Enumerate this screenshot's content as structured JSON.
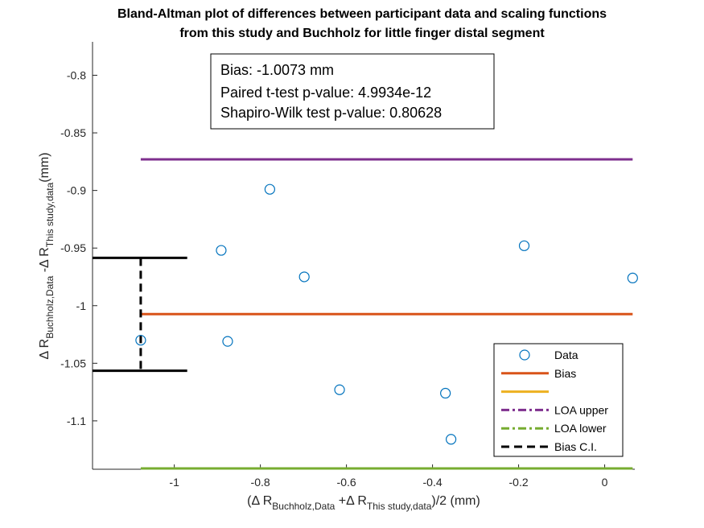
{
  "chart_data": {
    "type": "scatter",
    "title_lines": [
      "Bland-Altman plot of differences between participant data and scaling functions",
      "from this study and Buchholz for little finger distal segment"
    ],
    "xlabel": {
      "prefix": "(Δ R",
      "sub1": "Buchholz,Data",
      "mid": " +Δ R",
      "sub2": "This study,data",
      "suffix": ")/2 (mm)"
    },
    "ylabel": {
      "prefix": "Δ R",
      "sub1": "Buchholz,Data",
      "mid": " -Δ R",
      "sub2": "This study,data",
      "suffix": "(mm)"
    },
    "xlim": [
      -1.19,
      0.07
    ],
    "ylim": [
      -1.142,
      -0.771
    ],
    "xticks": [
      -1,
      -0.8,
      -0.6,
      -0.4,
      -0.2,
      0
    ],
    "xtick_labels": [
      "-1",
      "-0.8",
      "-0.6",
      "-0.4",
      "-0.2",
      "0"
    ],
    "yticks": [
      -1.1,
      -1.05,
      -1,
      -0.95,
      -0.9,
      -0.85,
      -0.8
    ],
    "ytick_labels": [
      "-1.1",
      "-1.05",
      "-1",
      "-0.95",
      "-0.9",
      "-0.85",
      "-0.8"
    ],
    "points": [
      {
        "x": -1.078,
        "y": -1.03
      },
      {
        "x": -0.891,
        "y": -0.952
      },
      {
        "x": -0.876,
        "y": -1.031
      },
      {
        "x": -0.778,
        "y": -0.899
      },
      {
        "x": -0.698,
        "y": -0.975
      },
      {
        "x": -0.616,
        "y": -1.073
      },
      {
        "x": -0.37,
        "y": -1.076
      },
      {
        "x": -0.357,
        "y": -1.116
      },
      {
        "x": -0.187,
        "y": -0.948
      },
      {
        "x": 0.065,
        "y": -0.976
      }
    ],
    "lines": {
      "bias": {
        "y": -1.0073,
        "x": [
          -1.078,
          0.065
        ],
        "color": "#D95319"
      },
      "loa_upper": {
        "y": -0.873,
        "x": [
          -1.078,
          0.065
        ],
        "color": "#7E2F8E"
      },
      "loa_lower": {
        "y": -1.142,
        "x": [
          -1.078,
          0.065
        ],
        "color": "#77AC30"
      },
      "bias_ci": {
        "x": -1.078,
        "y": [
          -1.0565,
          -0.9585
        ],
        "cap_x": [
          -1.19,
          -0.97
        ],
        "color": "#000000"
      }
    },
    "marker_color": "#0072BD",
    "annotation": [
      "Bias: -1.0073 mm",
      "Paired t-test p-value: 4.9934e-12",
      "Shapiro-Wilk test p-value: 0.80628"
    ],
    "legend": {
      "placement": "bottom-right",
      "entries": [
        {
          "label": "Data",
          "kind": "marker",
          "color": "#0072BD"
        },
        {
          "label": "Bias",
          "kind": "solid",
          "color": "#D95319"
        },
        {
          "label": "",
          "kind": "solid",
          "color": "#EDB120"
        },
        {
          "label": "LOA upper",
          "kind": "dashdot",
          "color": "#7E2F8E"
        },
        {
          "label": "LOA lower",
          "kind": "dashdot",
          "color": "#77AC30"
        },
        {
          "label": "Bias C.I.",
          "kind": "dashed",
          "color": "#000000"
        }
      ]
    }
  }
}
